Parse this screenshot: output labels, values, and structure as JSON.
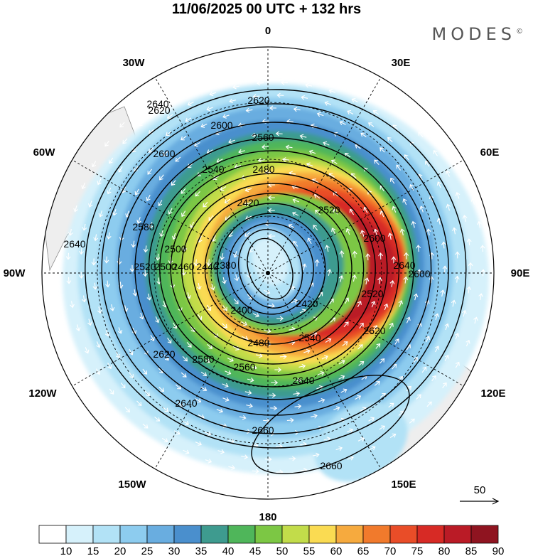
{
  "header": {
    "title": "11/06/2025  00 UTC  + 132 hrs",
    "brand": "MODES"
  },
  "lon_labels": [
    "0",
    "30E",
    "60E",
    "90E",
    "120E",
    "150E",
    "180",
    "150W",
    "120W",
    "90W",
    "60W",
    "30W"
  ],
  "contours": {
    "levels": [
      2380,
      2400,
      2420,
      2440,
      2460,
      2480,
      2500,
      2520,
      2540,
      2560,
      2580,
      2600,
      2620,
      2640,
      2660
    ],
    "labels": [
      "2640",
      "2620",
      "2600",
      "2560",
      "2540",
      "2480",
      "2420",
      "2380",
      "2400",
      "2420",
      "2440",
      "2460",
      "2500",
      "2520",
      "2580",
      "2600",
      "2620",
      "2640",
      "2620",
      "2640",
      "2660",
      "2660",
      "2640",
      "2580",
      "2560",
      "2540",
      "2480",
      "2520",
      "2520",
      "2600",
      "2640",
      "2600",
      "2620",
      "2500"
    ]
  },
  "wind_reference": {
    "label": "50"
  },
  "colorbar": {
    "ticks": [
      "10",
      "15",
      "20",
      "25",
      "30",
      "35",
      "40",
      "45",
      "50",
      "55",
      "60",
      "65",
      "70",
      "75",
      "80",
      "85",
      "90"
    ],
    "colors": [
      "#ffffff",
      "#d6f1fb",
      "#b2e2f6",
      "#8dccef",
      "#69ade0",
      "#4a8fcd",
      "#3e9b8f",
      "#4fb65a",
      "#7cc744",
      "#c2dc4a",
      "#fadb52",
      "#f6aa3e",
      "#f17a2c",
      "#e94d28",
      "#d72a25",
      "#ba1b26",
      "#8f1420"
    ]
  }
}
